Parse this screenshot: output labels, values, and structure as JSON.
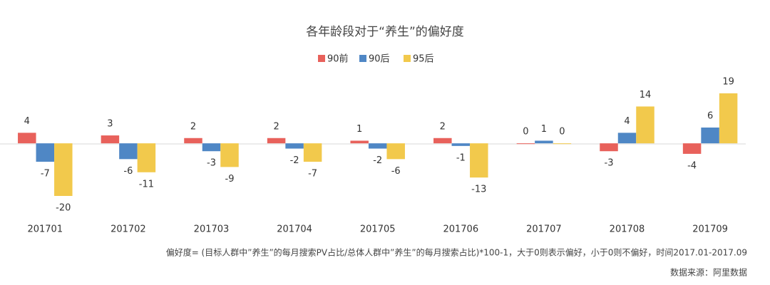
{
  "chart_data": {
    "type": "bar",
    "title": "各年龄段对于“养生”的偏好度",
    "categories": [
      "201701",
      "201702",
      "201703",
      "201704",
      "201705",
      "201706",
      "201707",
      "201708",
      "201709"
    ],
    "series": [
      {
        "name": "90前",
        "color": "#e8615b",
        "values": [
          4,
          3,
          2,
          2,
          1,
          2,
          0,
          -3,
          -4
        ]
      },
      {
        "name": "90后",
        "color": "#4f87c5",
        "values": [
          -7,
          -6,
          -3,
          -2,
          -2,
          -1,
          1,
          4,
          6
        ]
      },
      {
        "name": "95后",
        "color": "#f2c94c",
        "values": [
          -20,
          -11,
          -9,
          -7,
          -6,
          -13,
          0,
          14,
          19
        ]
      }
    ],
    "note": "偏好度= (目标人群中”养生”的每月搜索PV占比/总体人群中”养生”的每月搜索占比)*100-1，大于0则表示偏好，小于0则不偏好，时间2017.01-2017.09",
    "source": "数据来源：阿里数据"
  }
}
